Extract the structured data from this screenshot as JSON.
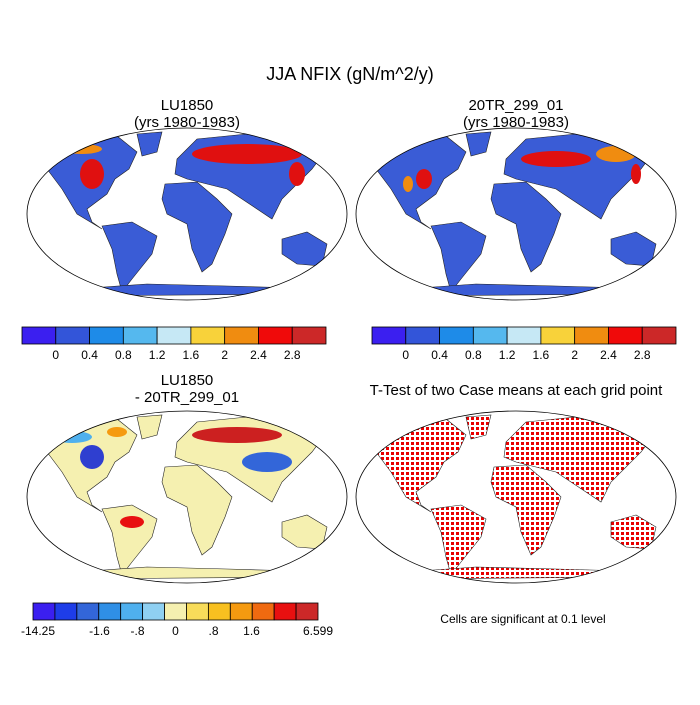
{
  "title": "JJA NFIX (gN/m^2/y)",
  "panels": [
    {
      "title": [
        "LU1850",
        "(yrs 1980-1983)"
      ]
    },
    {
      "title": [
        "20TR_299_01",
        "(yrs 1980-1983)"
      ]
    },
    {
      "title": [
        "LU1850",
        "- 20TR_299_01"
      ]
    },
    {
      "title": [
        "T-Test of two Case means at each grid point"
      ]
    }
  ],
  "colorbars": [
    {
      "colors": [
        "#3b1ff0",
        "#3355d9",
        "#1e8be8",
        "#55b8ee",
        "#c6e8f5",
        "#f8d23a",
        "#f08c10",
        "#f00a0a",
        "#cc2828"
      ],
      "ticks": [
        0,
        0.4,
        0.8,
        1.2,
        1.6,
        2,
        2.4,
        2.8
      ]
    },
    {
      "colors": [
        "#3b1ff0",
        "#3355d9",
        "#1e8be8",
        "#55b8ee",
        "#c6e8f5",
        "#f8d23a",
        "#f08c10",
        "#f00a0a",
        "#cc2828"
      ],
      "ticks": [
        0,
        0.4,
        0.8,
        1.2,
        1.6,
        2,
        2.4,
        2.8
      ]
    },
    {
      "colors": [
        "#3b1ff0",
        "#1e3de8",
        "#3366d9",
        "#2f8fe6",
        "#4fb0ee",
        "#8fd0f2",
        "#f5f0b0",
        "#f8dc5a",
        "#f8c020",
        "#f59a10",
        "#f06a10",
        "#e81010",
        "#cc2828"
      ],
      "ticks": [
        -14.25,
        -1.6,
        {
          "value": -0.8,
          "label": "-.8"
        },
        0,
        {
          "value": 0.8,
          "label": ".8"
        },
        1.6,
        6.599
      ]
    }
  ],
  "note": "Cells are significant at 0.1 level"
}
